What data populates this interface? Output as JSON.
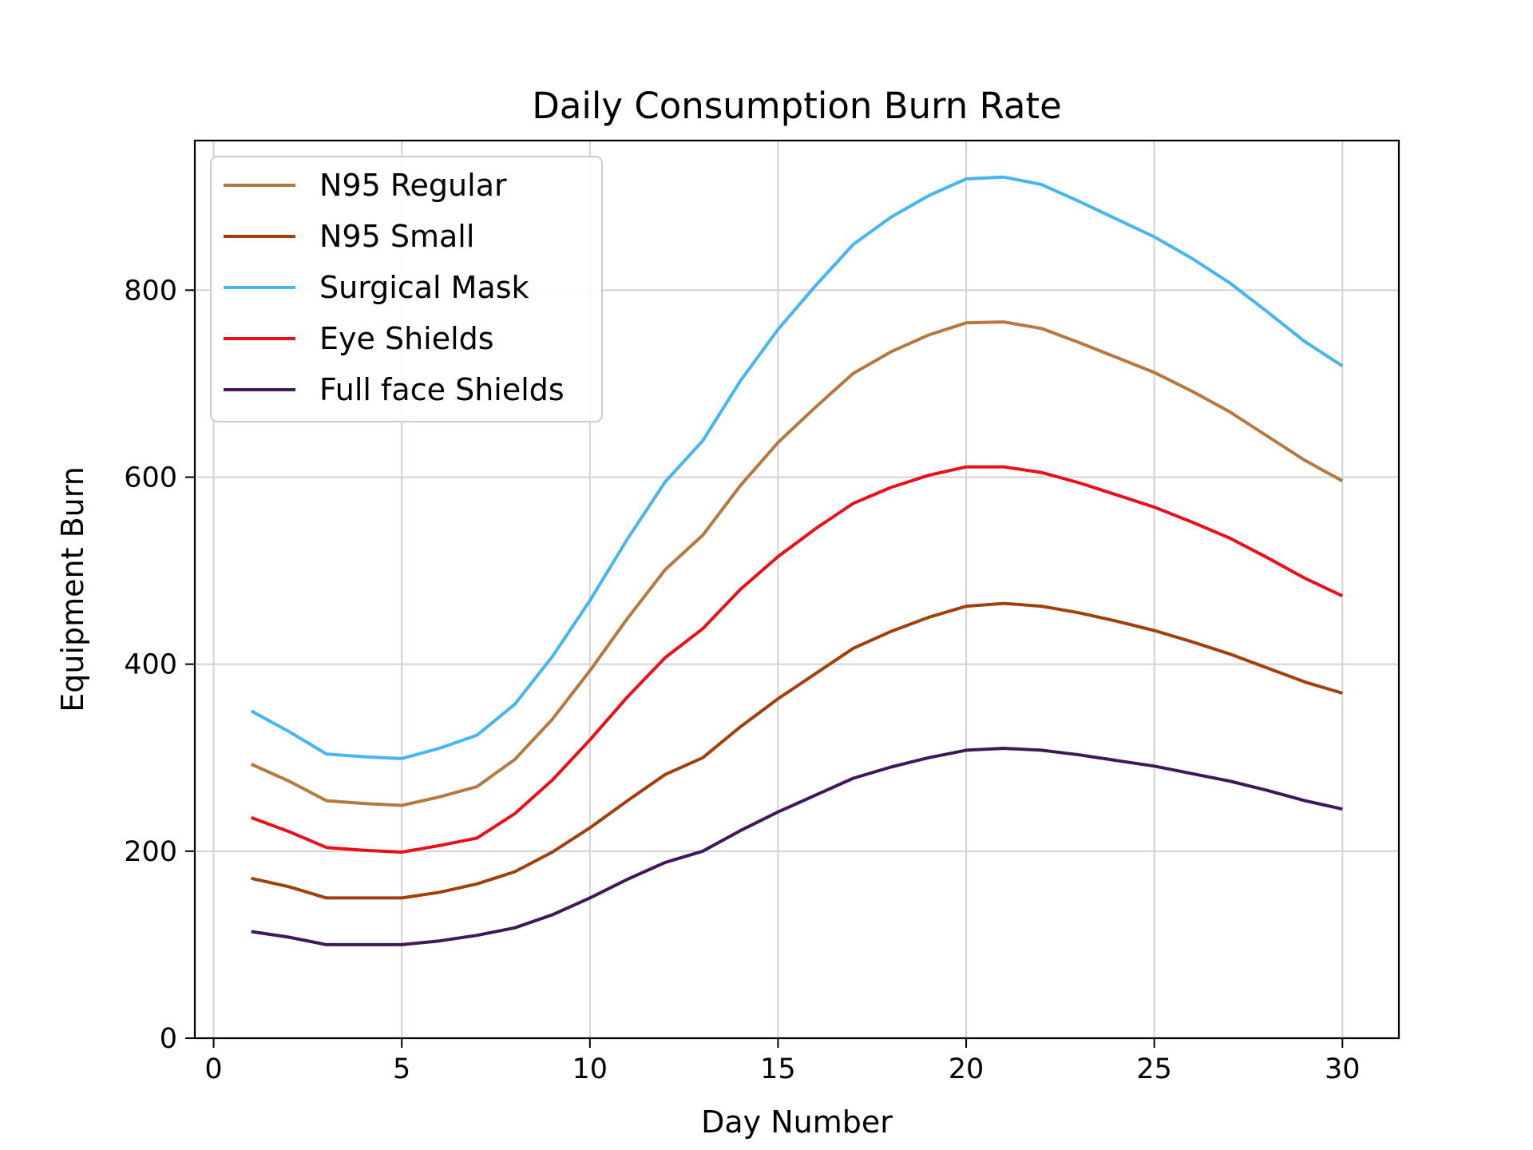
{
  "chart_data": {
    "type": "line",
    "title": "Daily Consumption Burn Rate",
    "xlabel": "Day Number",
    "ylabel": "Equipment Burn",
    "xlim": [
      -0.5,
      31.5
    ],
    "ylim": [
      0,
      960
    ],
    "xticks": [
      0,
      5,
      10,
      15,
      20,
      25,
      30
    ],
    "yticks": [
      0,
      200,
      400,
      600,
      800
    ],
    "grid": true,
    "legend_position": "upper-left",
    "x": [
      1,
      2,
      3,
      4,
      5,
      6,
      7,
      8,
      9,
      10,
      11,
      12,
      13,
      14,
      15,
      16,
      17,
      18,
      19,
      20,
      21,
      22,
      23,
      24,
      25,
      26,
      27,
      28,
      29,
      30
    ],
    "series": [
      {
        "name": "N95 Regular",
        "color": "#b5793f",
        "values": [
          293,
          275,
          254,
          251,
          249,
          258,
          269,
          298,
          341,
          393,
          449,
          501,
          538,
          591,
          637,
          675,
          711,
          734,
          752,
          765,
          766,
          759,
          744,
          728,
          712,
          692,
          670,
          644,
          618,
          596
        ]
      },
      {
        "name": "N95 Small",
        "color": "#a0400d",
        "values": [
          171,
          162,
          150,
          150,
          150,
          156,
          165,
          178,
          199,
          225,
          254,
          282,
          300,
          333,
          363,
          390,
          417,
          435,
          450,
          462,
          465,
          462,
          455,
          446,
          436,
          424,
          411,
          396,
          381,
          369
        ]
      },
      {
        "name": "Surgical Mask",
        "color": "#47b6ef",
        "values": [
          350,
          328,
          304,
          301,
          299,
          310,
          324,
          357,
          408,
          468,
          534,
          595,
          639,
          703,
          758,
          805,
          849,
          878,
          901,
          919,
          921,
          913,
          895,
          876,
          857,
          834,
          808,
          777,
          745,
          719
        ]
      },
      {
        "name": "Eye Shields",
        "color": "#e8101a",
        "values": [
          236,
          221,
          204,
          201,
          199,
          206,
          214,
          240,
          276,
          319,
          365,
          407,
          438,
          480,
          515,
          545,
          572,
          589,
          602,
          611,
          611,
          605,
          594,
          581,
          568,
          552,
          535,
          514,
          492,
          473
        ]
      },
      {
        "name": "Full face Shields",
        "color": "#3f1857",
        "values": [
          114,
          108,
          100,
          100,
          100,
          104,
          110,
          118,
          132,
          150,
          170,
          188,
          200,
          222,
          242,
          260,
          278,
          290,
          300,
          308,
          310,
          308,
          303,
          297,
          291,
          283,
          275,
          265,
          254,
          245
        ]
      }
    ]
  }
}
